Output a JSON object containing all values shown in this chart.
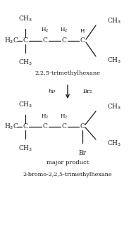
{
  "bg_color": "#ffffff",
  "text_color": "#1a1a1a",
  "arrow_color": "#1a1a1a",
  "title1": "2,2,5-trimethylhexane",
  "title2": "major product",
  "title3": "2-bromo-2,2,5-trimethylhexane",
  "hv_label": "hν",
  "br2_label": "Br₂",
  "fig_width": 1.93,
  "fig_height": 3.28,
  "dpi": 100
}
